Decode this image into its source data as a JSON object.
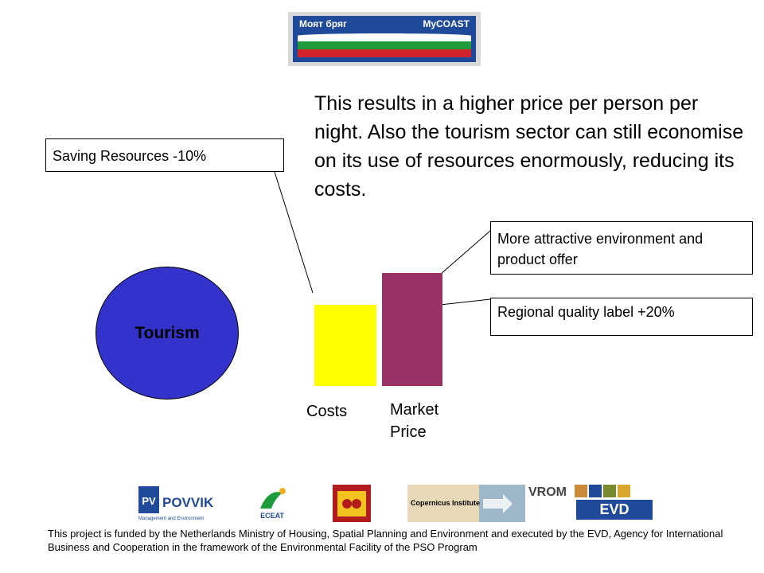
{
  "logo": {
    "label_left": "Моят бряг",
    "label_right": "MyCOAST"
  },
  "main_text": "This results in a higher price per person per night. Also the tourism sector can still economise on its use of resources enormously, reducing its costs.",
  "callouts": {
    "saving": "Saving Resources -10%",
    "attractive": "More attractive environment and product offer",
    "regional": "Regional quality label +20%"
  },
  "tourism_label": "Tourism",
  "bars": {
    "costs_label": "Costs",
    "market_label": "Market Price"
  },
  "colors": {
    "tourism": "#3333cc",
    "costs": "#ffff00",
    "market": "#993366"
  },
  "footer_logos": {
    "povvik_name": "POVVIK",
    "povvik_sub": "Management and Environment",
    "ecat_name": "ECEAT",
    "copernicus_name": "Copernicus Institute",
    "vrom_name": "VROM",
    "evd_name": "EVD"
  },
  "footer_text": "This project is funded by the Netherlands Ministry of Housing, Spatial Planning and Environment and executed by the EVD, Agency for International Business and Cooperation in the framework of the Environmental Facility of the PSO Program"
}
